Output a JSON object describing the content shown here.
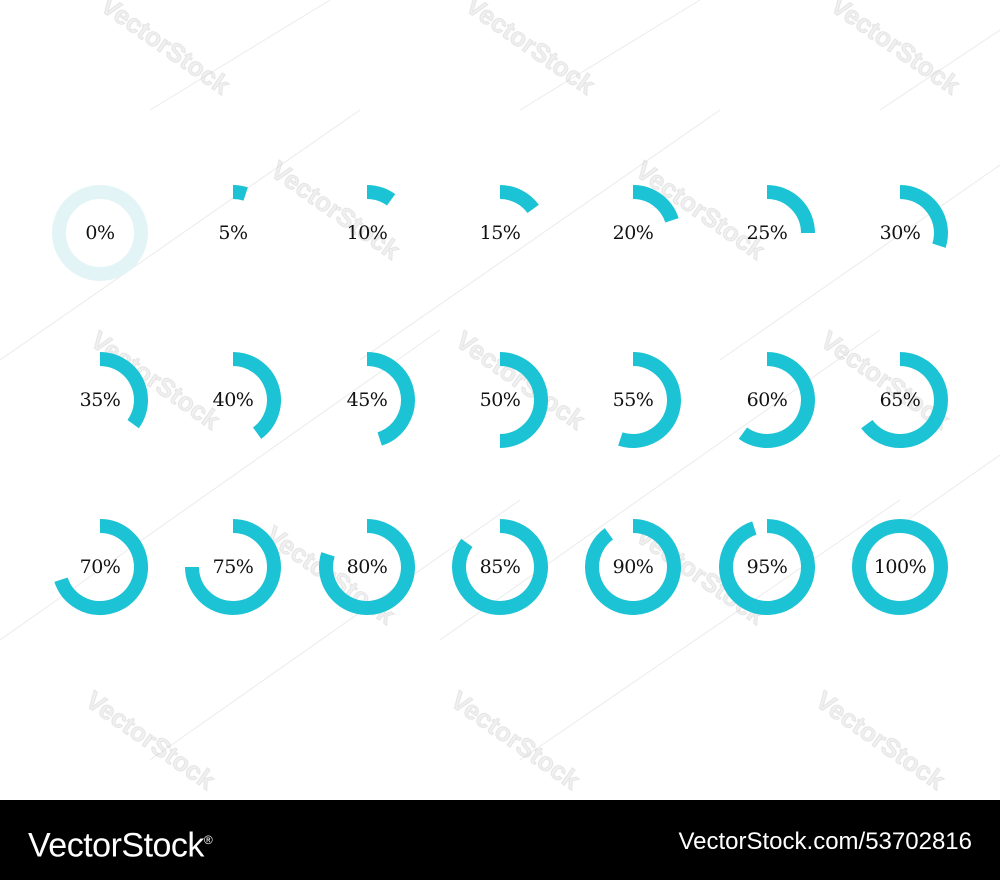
{
  "colors": {
    "accent": "#1cc3d4",
    "track_empty": "#e3f4f6",
    "label": "#111111",
    "footer_bg": "#000000",
    "footer_text": "#ffffff"
  },
  "progress_rings": [
    {
      "label": "0%",
      "value": 0
    },
    {
      "label": "5%",
      "value": 5
    },
    {
      "label": "10%",
      "value": 10
    },
    {
      "label": "15%",
      "value": 15
    },
    {
      "label": "20%",
      "value": 20
    },
    {
      "label": "25%",
      "value": 25
    },
    {
      "label": "30%",
      "value": 30
    },
    {
      "label": "35%",
      "value": 35
    },
    {
      "label": "40%",
      "value": 40
    },
    {
      "label": "45%",
      "value": 45
    },
    {
      "label": "50%",
      "value": 50
    },
    {
      "label": "55%",
      "value": 55
    },
    {
      "label": "60%",
      "value": 60
    },
    {
      "label": "65%",
      "value": 65
    },
    {
      "label": "70%",
      "value": 70
    },
    {
      "label": "75%",
      "value": 75
    },
    {
      "label": "80%",
      "value": 80
    },
    {
      "label": "85%",
      "value": 85
    },
    {
      "label": "90%",
      "value": 90
    },
    {
      "label": "95%",
      "value": 95
    },
    {
      "label": "100%",
      "value": 100
    }
  ],
  "watermark": {
    "text": "VectorStock"
  },
  "footer": {
    "logo_text": "VectorStock",
    "logo_mark": "®",
    "image_id": "VectorStock.com/53702816"
  }
}
